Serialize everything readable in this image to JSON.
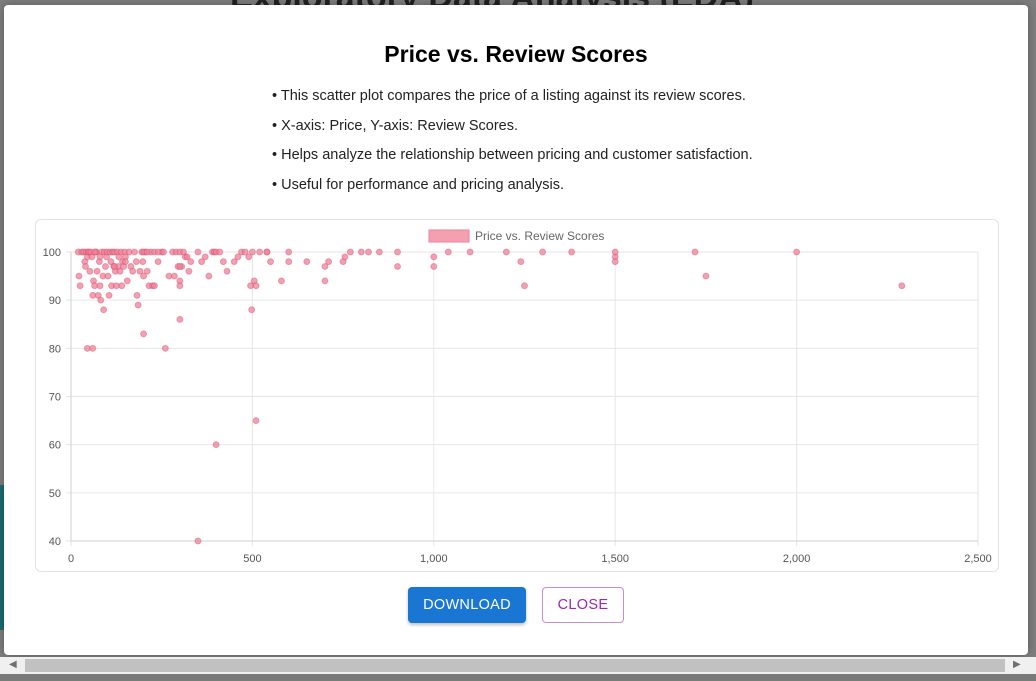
{
  "background": {
    "page_heading": "Exploratory Data Analysis (EDA)"
  },
  "modal": {
    "title": "Price vs. Review Scores",
    "bullets": [
      "• This scatter plot compares the price of a listing against its review scores.",
      "• X-axis: Price, Y-axis: Review Scores.",
      "• Helps analyze the relationship between pricing and customer satisfaction.",
      "• Useful for performance and pricing analysis."
    ],
    "download_label": "DOWNLOAD",
    "close_label": "CLOSE"
  },
  "colors": {
    "point_fill": "#f08098",
    "point_stroke": "#c83a5a",
    "primary": "#1976d2",
    "secondary": "#9c27b0"
  },
  "icons": {
    "scroll_left": "triangle-left",
    "scroll_right": "triangle-right"
  },
  "chart_data": {
    "type": "scatter",
    "legend": "Price vs. Review Scores",
    "legend_position": "top",
    "xlim": [
      0,
      2500
    ],
    "ylim": [
      40,
      100
    ],
    "x_ticks": [
      "0",
      "500",
      "1,000",
      "1,500",
      "2,000",
      "2,500"
    ],
    "y_ticks": [
      "40",
      "50",
      "60",
      "70",
      "80",
      "90",
      "100"
    ],
    "grid": true,
    "points": [
      [
        20,
        100
      ],
      [
        25,
        93
      ],
      [
        22,
        95
      ],
      [
        30,
        100
      ],
      [
        35,
        100
      ],
      [
        38,
        98
      ],
      [
        40,
        97
      ],
      [
        42,
        100
      ],
      [
        45,
        99
      ],
      [
        48,
        100
      ],
      [
        50,
        100
      ],
      [
        52,
        96
      ],
      [
        55,
        100
      ],
      [
        58,
        99
      ],
      [
        60,
        91
      ],
      [
        62,
        94
      ],
      [
        65,
        93
      ],
      [
        68,
        100
      ],
      [
        70,
        100
      ],
      [
        72,
        96
      ],
      [
        75,
        91
      ],
      [
        78,
        98
      ],
      [
        80,
        93
      ],
      [
        82,
        90
      ],
      [
        85,
        100
      ],
      [
        88,
        95
      ],
      [
        90,
        88
      ],
      [
        92,
        100
      ],
      [
        95,
        97
      ],
      [
        98,
        99
      ],
      [
        100,
        100
      ],
      [
        102,
        95
      ],
      [
        105,
        91
      ],
      [
        108,
        100
      ],
      [
        110,
        98
      ],
      [
        112,
        93
      ],
      [
        115,
        100
      ],
      [
        118,
        97
      ],
      [
        120,
        100
      ],
      [
        122,
        96
      ],
      [
        125,
        93
      ],
      [
        128,
        100
      ],
      [
        130,
        97
      ],
      [
        132,
        99
      ],
      [
        135,
        96
      ],
      [
        138,
        100
      ],
      [
        140,
        93
      ],
      [
        142,
        98
      ],
      [
        145,
        97
      ],
      [
        148,
        100
      ],
      [
        150,
        99
      ],
      [
        155,
        94
      ],
      [
        160,
        100
      ],
      [
        165,
        97
      ],
      [
        170,
        96
      ],
      [
        175,
        100
      ],
      [
        180,
        98
      ],
      [
        182,
        91
      ],
      [
        185,
        89
      ],
      [
        190,
        96
      ],
      [
        195,
        100
      ],
      [
        198,
        98
      ],
      [
        200,
        95
      ],
      [
        205,
        100
      ],
      [
        210,
        96
      ],
      [
        215,
        93
      ],
      [
        220,
        100
      ],
      [
        225,
        93
      ],
      [
        230,
        100
      ],
      [
        240,
        98
      ],
      [
        250,
        100
      ],
      [
        255,
        100
      ],
      [
        260,
        80
      ],
      [
        270,
        95
      ],
      [
        280,
        100
      ],
      [
        285,
        95
      ],
      [
        290,
        100
      ],
      [
        295,
        97
      ],
      [
        300,
        94
      ],
      [
        300,
        93
      ],
      [
        300,
        100
      ],
      [
        305,
        97
      ],
      [
        310,
        100
      ],
      [
        315,
        99
      ],
      [
        320,
        99
      ],
      [
        325,
        96
      ],
      [
        330,
        98
      ],
      [
        350,
        100
      ],
      [
        360,
        98
      ],
      [
        370,
        99
      ],
      [
        380,
        95
      ],
      [
        390,
        100
      ],
      [
        395,
        100
      ],
      [
        400,
        100
      ],
      [
        410,
        100
      ],
      [
        420,
        98
      ],
      [
        430,
        96
      ],
      [
        450,
        98
      ],
      [
        460,
        99
      ],
      [
        470,
        100
      ],
      [
        480,
        100
      ],
      [
        490,
        99
      ],
      [
        495,
        93
      ],
      [
        498,
        88
      ],
      [
        500,
        100
      ],
      [
        505,
        94
      ],
      [
        510,
        93
      ],
      [
        520,
        100
      ],
      [
        540,
        100
      ],
      [
        550,
        98
      ],
      [
        580,
        94
      ],
      [
        600,
        98
      ],
      [
        650,
        98
      ],
      [
        700,
        97
      ],
      [
        700,
        94
      ],
      [
        750,
        98
      ],
      [
        755,
        99
      ],
      [
        800,
        100
      ],
      [
        820,
        100
      ],
      [
        900,
        97
      ],
      [
        1000,
        99
      ],
      [
        1040,
        100
      ],
      [
        1100,
        100
      ],
      [
        1200,
        100
      ],
      [
        1250,
        93
      ],
      [
        1300,
        100
      ],
      [
        1380,
        100
      ],
      [
        1500,
        99
      ],
      [
        1500,
        98
      ],
      [
        1750,
        95
      ],
      [
        2290,
        93
      ],
      [
        45,
        80
      ],
      [
        60,
        80
      ],
      [
        200,
        83
      ],
      [
        300,
        86
      ],
      [
        510,
        65
      ],
      [
        400,
        60
      ],
      [
        350,
        40
      ],
      [
        65,
        100
      ],
      [
        80,
        99
      ],
      [
        120,
        97
      ],
      [
        150,
        98
      ],
      [
        200,
        100
      ],
      [
        210,
        100
      ],
      [
        230,
        93
      ],
      [
        300,
        97
      ],
      [
        600,
        100
      ],
      [
        900,
        100
      ],
      [
        1000,
        97
      ],
      [
        1500,
        100
      ],
      [
        1720,
        100
      ],
      [
        2000,
        100
      ],
      [
        1240,
        98
      ],
      [
        240,
        100
      ],
      [
        540,
        100
      ],
      [
        710,
        98
      ],
      [
        770,
        100
      ],
      [
        850,
        100
      ]
    ]
  }
}
